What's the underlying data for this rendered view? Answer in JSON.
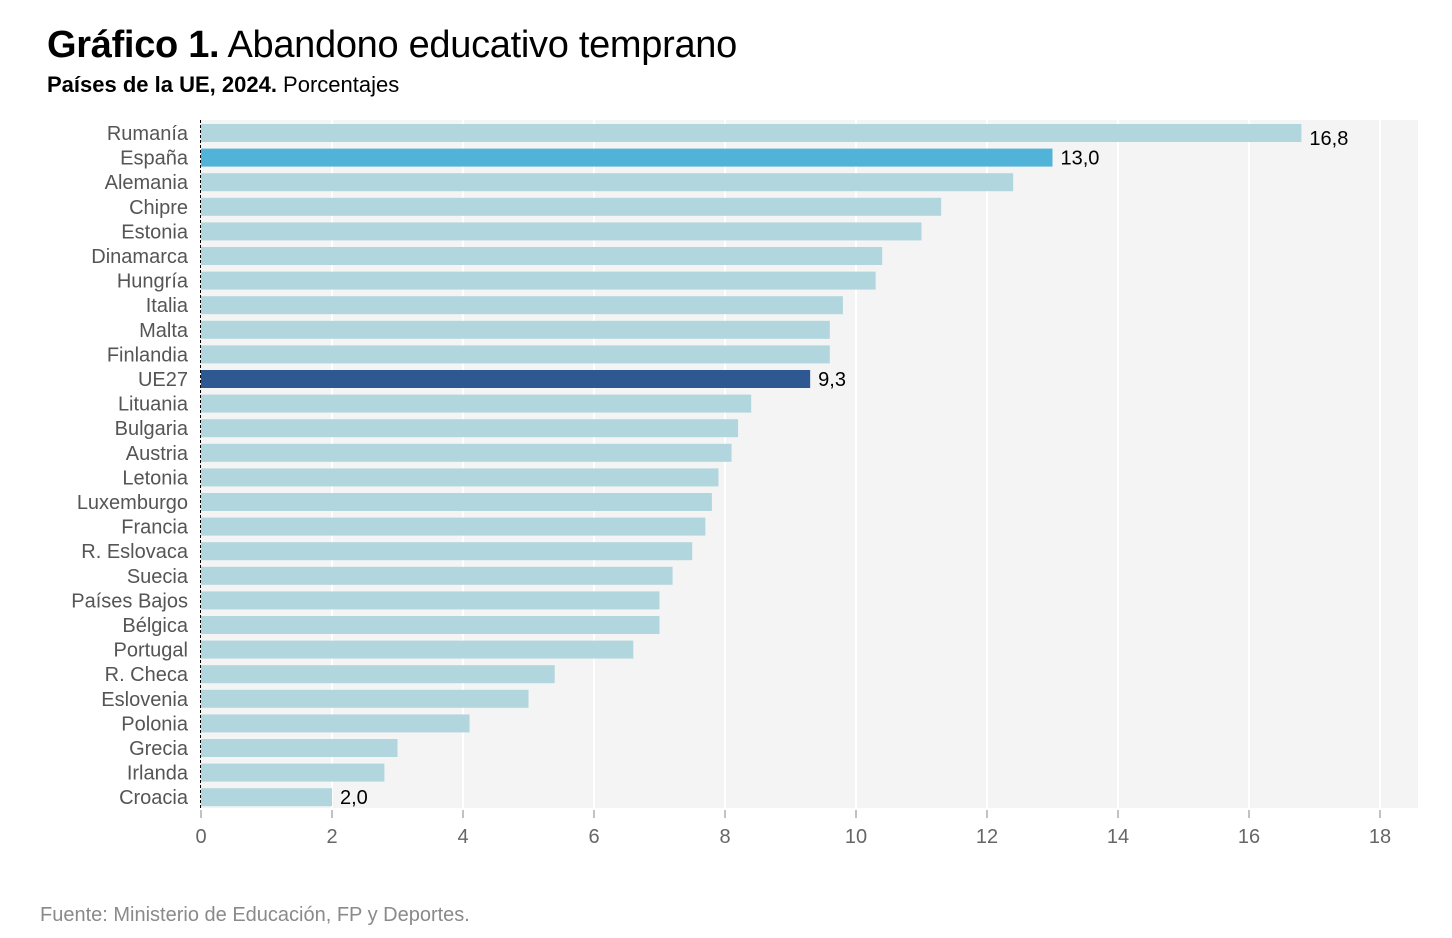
{
  "header": {
    "title_bold": "Gráfico 1.",
    "title_rest": " Abandono educativo temprano",
    "subtitle_bold": "Países de la UE, 2024.",
    "subtitle_rest": " Porcentajes"
  },
  "footer": {
    "source": "Fuente: Ministerio de Educación, FP y Deportes."
  },
  "colors": {
    "default_bar": "#b1d6de",
    "spain_bar": "#52b3d9",
    "eu_bar": "#2e5891",
    "plot_background": "#f4f4f4",
    "gridline": "#ffffff"
  },
  "chart_data": {
    "type": "bar",
    "orientation": "horizontal",
    "title": "Gráfico 1. Abandono educativo temprano",
    "subtitle": "Países de la UE, 2024. Porcentajes",
    "xlabel": "",
    "ylabel": "",
    "xlim": [
      0,
      18.6
    ],
    "xticks": [
      0,
      2,
      4,
      6,
      8,
      10,
      12,
      14,
      16,
      18
    ],
    "xtick_labels": [
      "0",
      "2",
      "4",
      "6",
      "8",
      "10",
      "12",
      "14",
      "16",
      "18"
    ],
    "grid": "vertical",
    "legend": "none",
    "categories": [
      "Rumanía",
      "España",
      "Alemania",
      "Chipre",
      "Estonia",
      "Dinamarca",
      "Hungría",
      "Italia",
      "Malta",
      "Finlandia",
      "UE27",
      "Lituania",
      "Bulgaria",
      "Austria",
      "Letonia",
      "Luxemburgo",
      "Francia",
      "R. Eslovaca",
      "Suecia",
      "Países Bajos",
      "Bélgica",
      "Portugal",
      "R. Checa",
      "Eslovenia",
      "Polonia",
      "Grecia",
      "Irlanda",
      "Croacia"
    ],
    "values": [
      16.8,
      13.0,
      12.4,
      11.3,
      11.0,
      10.4,
      10.3,
      9.8,
      9.6,
      9.6,
      9.3,
      8.4,
      8.2,
      8.1,
      7.9,
      7.8,
      7.7,
      7.5,
      7.2,
      7.0,
      7.0,
      6.6,
      5.4,
      5.0,
      4.1,
      3.0,
      2.8,
      2.0
    ],
    "highlight": {
      "España": "spain_bar",
      "UE27": "eu_bar"
    },
    "data_labels": {
      "Rumanía": "16,8",
      "España": "13,0",
      "UE27": "9,3",
      "Croacia": "2,0"
    },
    "source": "Fuente: Ministerio de Educación, FP y Deportes."
  }
}
